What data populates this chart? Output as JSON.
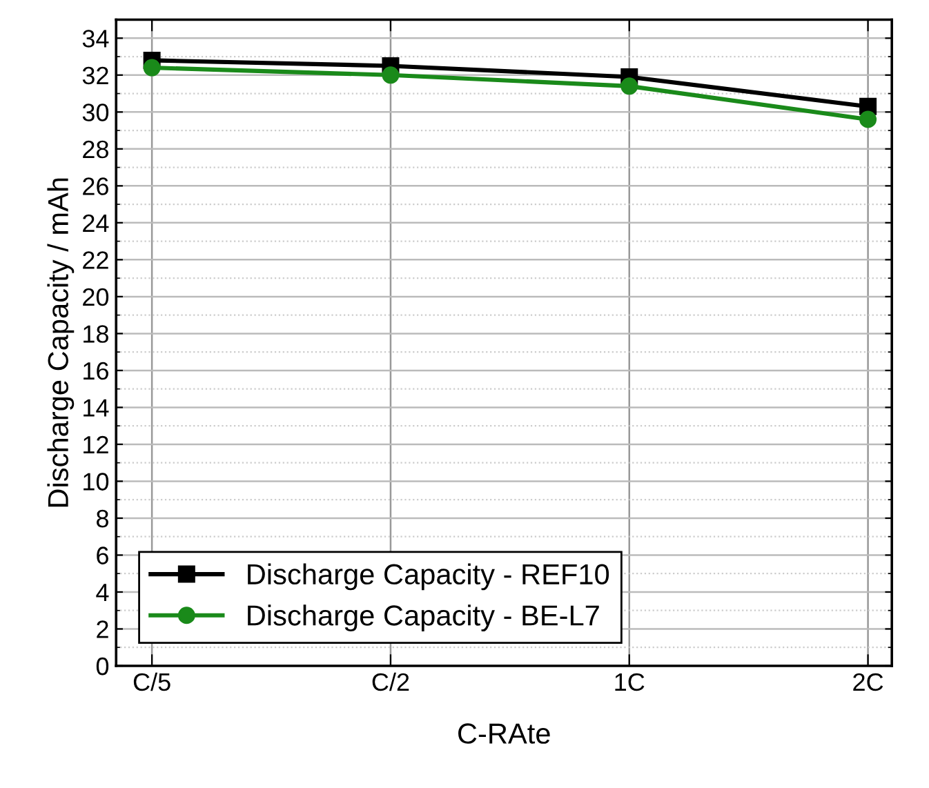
{
  "chart_data": {
    "type": "line",
    "xlabel": "C-RAte",
    "ylabel": "Discharge Capacity / mAh",
    "categories": [
      "C/5",
      "C/2",
      "1C",
      "2C"
    ],
    "series": [
      {
        "name": "Discharge Capacity - REF10",
        "color": "#000000",
        "marker": "square",
        "values": [
          32.8,
          32.5,
          31.9,
          30.3
        ]
      },
      {
        "name": "Discharge Capacity - BE-L7",
        "color": "#1a8a1a",
        "marker": "circle",
        "values": [
          32.4,
          32.0,
          31.4,
          29.6
        ]
      }
    ],
    "ylim": [
      0,
      35
    ],
    "yticks": [
      0,
      {
        "value": 1,
        "label": null
      },
      2,
      {
        "value": 3,
        "label": null
      },
      4,
      {
        "value": 5,
        "label": null
      },
      6,
      {
        "value": 7,
        "label": null
      },
      8,
      {
        "value": 9,
        "label": null
      },
      10,
      {
        "value": 11,
        "label": null
      },
      12,
      {
        "value": 13,
        "label": null
      },
      14,
      {
        "value": 15,
        "label": null
      },
      16,
      {
        "value": 17,
        "label": null
      },
      18,
      {
        "value": 19,
        "label": null
      },
      20,
      {
        "value": 21,
        "label": null
      },
      22,
      {
        "value": 23,
        "label": null
      },
      24,
      {
        "value": 25,
        "label": null
      },
      26,
      {
        "value": 27,
        "label": null
      },
      28,
      {
        "value": 29,
        "label": null
      },
      30,
      {
        "value": 31,
        "label": null
      },
      32,
      {
        "value": 33,
        "label": null
      },
      34
    ],
    "grid": true,
    "legend": "bottom left",
    "line_style": "solid"
  }
}
